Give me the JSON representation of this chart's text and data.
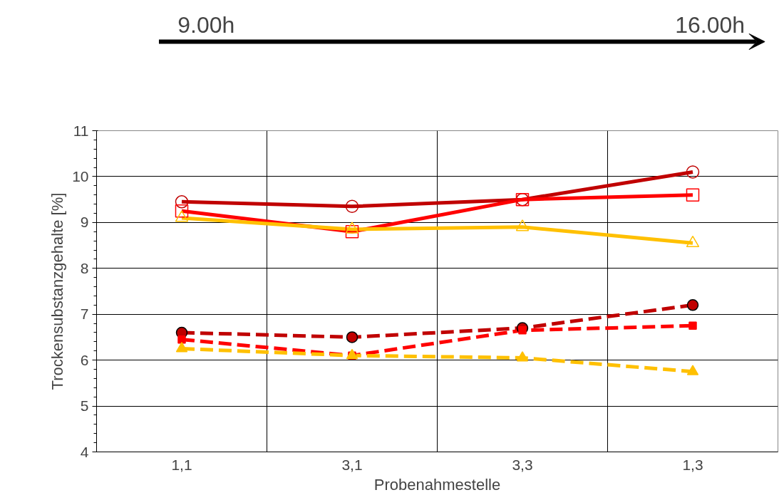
{
  "chart_data": {
    "type": "line",
    "xlabel": "Probenahmestelle",
    "ylabel": "Trockensubstanzgehalte [%]",
    "categories": [
      "1,1",
      "3,1",
      "3,3",
      "1,3"
    ],
    "ylim": [
      4,
      11
    ],
    "yticks": [
      4,
      5,
      6,
      7,
      8,
      9,
      10,
      11
    ],
    "grid": true,
    "annotations": [
      "9.00h",
      "16.00h"
    ],
    "series": [
      {
        "color": "#c00000",
        "values": [
          9.45,
          9.35,
          9.5,
          10.1
        ],
        "marker": "circle",
        "line_style": "solid"
      },
      {
        "color": "#ff0000",
        "values": [
          9.25,
          8.8,
          9.5,
          9.6
        ],
        "marker": "square",
        "line_style": "solid"
      },
      {
        "color": "#ffc000",
        "values": [
          9.1,
          8.85,
          8.9,
          8.55
        ],
        "marker": "triangle",
        "line_style": "solid"
      },
      {
        "color": "#c00000",
        "values": [
          6.6,
          6.5,
          6.7,
          7.2
        ],
        "marker": "circle",
        "line_style": "dashed"
      },
      {
        "color": "#ff0000",
        "values": [
          6.45,
          6.1,
          6.65,
          6.75
        ],
        "marker": "square",
        "line_style": "dashed"
      },
      {
        "color": "#ffc000",
        "values": [
          6.25,
          6.1,
          6.05,
          5.75
        ],
        "marker": "triangle",
        "line_style": "dashed"
      }
    ]
  }
}
